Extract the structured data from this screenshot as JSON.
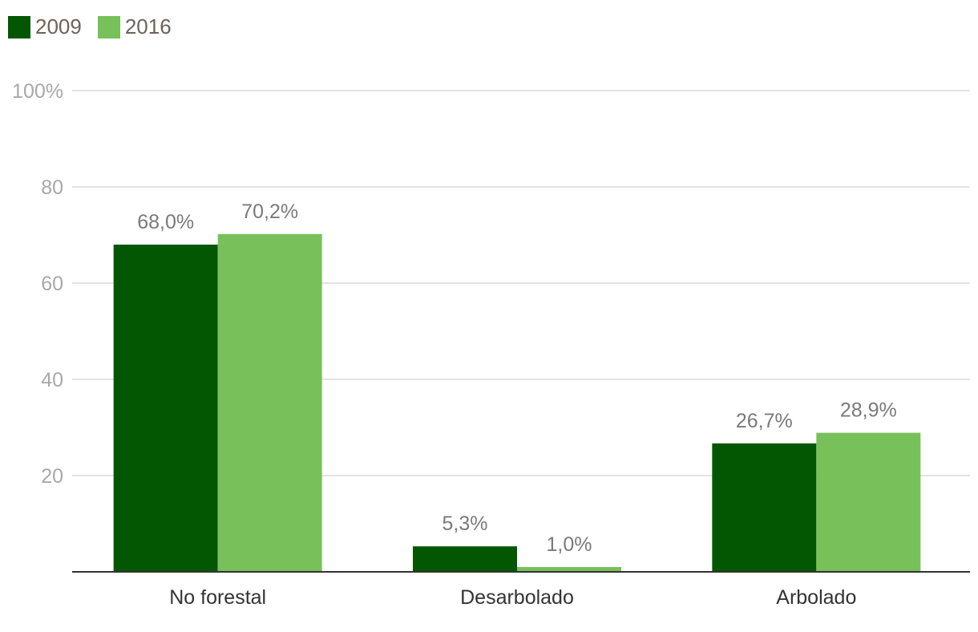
{
  "chart_data": {
    "type": "bar",
    "categories": [
      "No forestal",
      "Desarbolado",
      "Arbolado"
    ],
    "series": [
      {
        "name": "2009",
        "values": [
          68.0,
          5.3,
          26.7
        ],
        "labels": [
          "68,0%",
          "5,3%",
          "26,7%"
        ],
        "color": "#035703"
      },
      {
        "name": "2016",
        "values": [
          70.2,
          1.0,
          28.9
        ],
        "labels": [
          "70,2%",
          "1,0%",
          "28,9%"
        ],
        "color": "#78c05a"
      }
    ],
    "title": "",
    "xlabel": "",
    "ylabel": "",
    "ylim": [
      0,
      100
    ],
    "yticks": [
      20,
      40,
      60,
      80,
      100
    ],
    "ytick_labels": [
      "20",
      "40",
      "60",
      "80",
      "100%"
    ],
    "grid": true,
    "legend_position": "top-left"
  },
  "colors": {
    "gridline": "#e3e3e3",
    "axis": "#333333",
    "tick_label": "#a8a8a8",
    "data_label": "#7a7a7a",
    "category_label": "#333333",
    "legend_text": "#6e6259"
  }
}
